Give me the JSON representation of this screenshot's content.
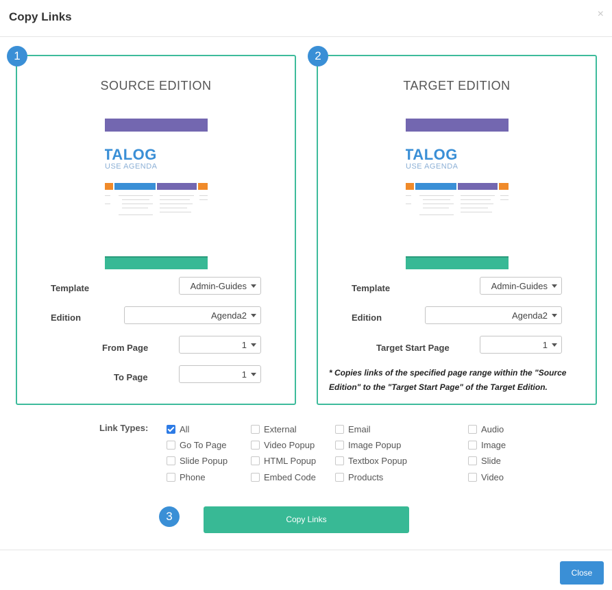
{
  "dialog": {
    "title": "Copy Links",
    "close_glyph": "×"
  },
  "steps": [
    "1",
    "2",
    "3"
  ],
  "source": {
    "title": "SOURCE EDITION",
    "thumb": {
      "big": "TALOG",
      "sub": "USE AGENDA"
    },
    "template_label": "Template",
    "template_value": "Admin-Guides",
    "edition_label": "Edition",
    "edition_value": "Agenda2",
    "from_label": "From Page",
    "from_value": "1",
    "to_label": "To Page",
    "to_value": "1"
  },
  "target": {
    "title": "TARGET EDITION",
    "thumb": {
      "big": "TALOG",
      "sub": "USE AGENDA"
    },
    "template_label": "Template",
    "template_value": "Admin-Guides",
    "edition_label": "Edition",
    "edition_value": "Agenda2",
    "start_label": "Target Start Page",
    "start_value": "1",
    "note": "* Copies links of the specified page range within the \"Source Edition\" to the \"Target Start Page\" of the Target Edition."
  },
  "link_types": {
    "label": "Link Types:",
    "items": [
      {
        "label": "All",
        "checked": true
      },
      {
        "label": "External",
        "checked": false
      },
      {
        "label": "Email",
        "checked": false
      },
      {
        "label": "Audio",
        "checked": false
      },
      {
        "label": "Go To Page",
        "checked": false
      },
      {
        "label": "Video Popup",
        "checked": false
      },
      {
        "label": "Image Popup",
        "checked": false
      },
      {
        "label": "Image",
        "checked": false
      },
      {
        "label": "Slide Popup",
        "checked": false
      },
      {
        "label": "HTML Popup",
        "checked": false
      },
      {
        "label": "Textbox Popup",
        "checked": false
      },
      {
        "label": "Slide",
        "checked": false
      },
      {
        "label": "Phone",
        "checked": false
      },
      {
        "label": "Embed Code",
        "checked": false
      },
      {
        "label": "Products",
        "checked": false
      },
      {
        "label": "Video",
        "checked": false
      }
    ]
  },
  "buttons": {
    "copy": "Copy Links",
    "close": "Close"
  },
  "colors": {
    "accent_green": "#38b995",
    "accent_blue": "#3a8fd6",
    "purple": "#7367b0",
    "checkbox_blue": "#2d7be5"
  }
}
